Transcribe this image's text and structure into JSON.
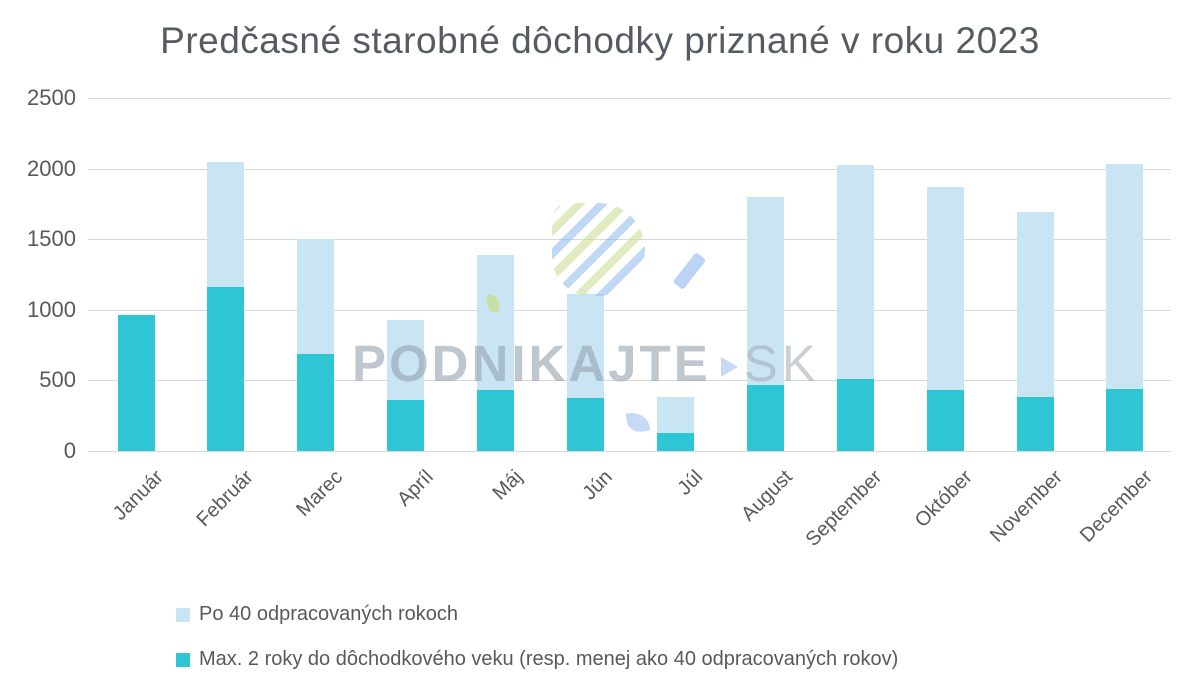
{
  "title": "Predčasné starobné dôchodky priznané v roku 2023",
  "watermark": {
    "brand": "PODNIKAJTE",
    "suffix": "SK"
  },
  "colors": {
    "series_light_blue": "#C9E5F4",
    "series_teal": "#2EC6D5",
    "gridline": "#D9D9D9",
    "axis_text": "#595959",
    "title_text": "#555B61"
  },
  "chart_data": {
    "type": "bar",
    "stacked": true,
    "title": "Predčasné starobné dôchodky priznané v roku 2023",
    "categories": [
      "Január",
      "Február",
      "Marec",
      "Apríl",
      "Máj",
      "Jún",
      "Júl",
      "August",
      "September",
      "Október",
      "November",
      "December"
    ],
    "series": [
      {
        "name": "Po 40 odpracovaných rokoch",
        "color": "#C9E5F4",
        "values": [
          0,
          890,
          810,
          570,
          950,
          735,
          255,
          1330,
          1515,
          1435,
          1310,
          1590
        ]
      },
      {
        "name": "Max. 2 roky do dôchodkového veku (resp. menej ako 40 odpracovaných rokov)",
        "color": "#2EC6D5",
        "values": [
          965,
          1160,
          690,
          360,
          435,
          375,
          130,
          470,
          510,
          435,
          380,
          440
        ]
      }
    ],
    "totals": [
      965,
      2050,
      1500,
      930,
      1385,
      1110,
      385,
      1800,
      2025,
      1870,
      1690,
      2030
    ],
    "xlabel": "",
    "ylabel": "",
    "ylim": [
      0,
      2500
    ],
    "yticks": [
      0,
      500,
      1000,
      1500,
      2000,
      2500
    ],
    "grid": "horizontal",
    "legend_position": "bottom-left"
  }
}
